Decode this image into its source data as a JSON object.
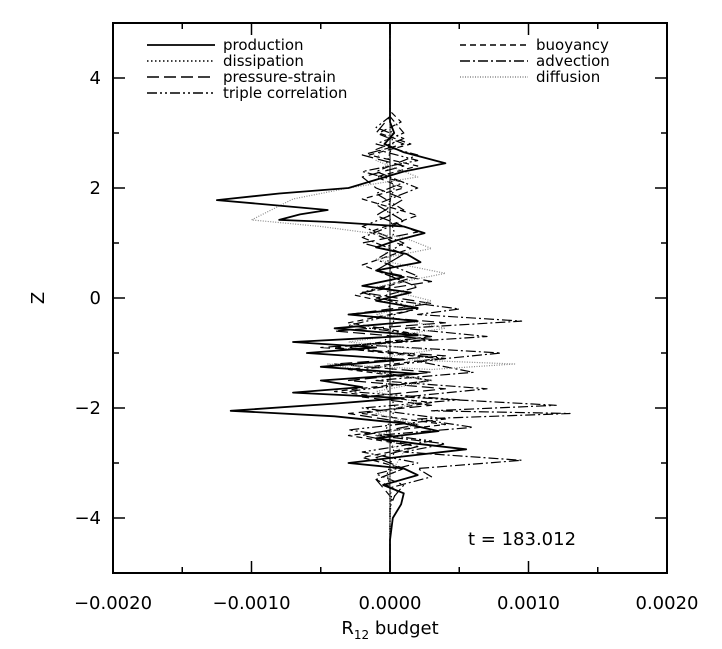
{
  "chart_data": {
    "type": "line",
    "xlabel": "R",
    "xlabel_sub": "12",
    "xlabel_suffix": " budget",
    "ylabel": "Z",
    "xlim": [
      -0.002,
      0.002
    ],
    "ylim": [
      -5,
      5
    ],
    "xticks": [
      -0.002,
      -0.001,
      0.0,
      0.001,
      0.002
    ],
    "xtick_labels": [
      "−0.0020",
      "−0.0010",
      "0.0000",
      "0.0010",
      "0.0020"
    ],
    "yticks": [
      -4,
      -2,
      0,
      2,
      4
    ],
    "ytick_labels": [
      "−4",
      "−2",
      "0",
      "2",
      "4"
    ],
    "grid": false,
    "legend_placement": "top",
    "annotation": "t = 183.012",
    "series": [
      {
        "name": "production",
        "style": "solid",
        "color": "#000000",
        "points": [
          [
            0,
            5
          ],
          [
            0,
            3.2
          ],
          [
            3e-05,
            3.0
          ],
          [
            -4e-05,
            2.8
          ],
          [
            0.0001,
            2.65
          ],
          [
            0.00025,
            2.55
          ],
          [
            0.0004,
            2.45
          ],
          [
            0.0001,
            2.3
          ],
          [
            -0.0001,
            2.15
          ],
          [
            -0.0003,
            2.0
          ],
          [
            -0.0008,
            1.9
          ],
          [
            -0.00125,
            1.78
          ],
          [
            -0.0008,
            1.68
          ],
          [
            -0.00045,
            1.6
          ],
          [
            -0.00065,
            1.52
          ],
          [
            -0.0008,
            1.42
          ],
          [
            -0.0004,
            1.38
          ],
          [
            0.0001,
            1.3
          ],
          [
            0.00025,
            1.18
          ],
          [
            5e-05,
            1.05
          ],
          [
            -0.0001,
            0.92
          ],
          [
            0.00012,
            0.8
          ],
          [
            0.00022,
            0.65
          ],
          [
            -0.0001,
            0.5
          ],
          [
            0.0001,
            0.38
          ],
          [
            -0.0002,
            0.22
          ],
          [
            0.00015,
            0.1
          ],
          [
            -0.0001,
            -0.05
          ],
          [
            0.0002,
            -0.18
          ],
          [
            -0.0003,
            -0.3
          ],
          [
            0.0002,
            -0.42
          ],
          [
            -0.0004,
            -0.55
          ],
          [
            0.0002,
            -0.68
          ],
          [
            -0.0007,
            -0.8
          ],
          [
            -0.0001,
            -0.9
          ],
          [
            -0.0006,
            -1.0
          ],
          [
            0.0001,
            -1.12
          ],
          [
            -0.0005,
            -1.25
          ],
          [
            0.0002,
            -1.38
          ],
          [
            -0.0005,
            -1.5
          ],
          [
            -0.0002,
            -1.62
          ],
          [
            -0.0007,
            -1.72
          ],
          [
            0.0001,
            -1.82
          ],
          [
            -0.0004,
            -1.92
          ],
          [
            -0.00115,
            -2.05
          ],
          [
            -0.0004,
            -2.15
          ],
          [
            0.0001,
            -2.28
          ],
          [
            0.00035,
            -2.42
          ],
          [
            -0.0001,
            -2.55
          ],
          [
            0.0002,
            -2.65
          ],
          [
            0.00055,
            -2.75
          ],
          [
            0.0001,
            -2.88
          ],
          [
            -0.0003,
            -3.0
          ],
          [
            0.0001,
            -3.1
          ],
          [
            0.0002,
            -3.22
          ],
          [
            -5e-05,
            -3.4
          ],
          [
            0.0001,
            -3.55
          ],
          [
            8e-05,
            -3.75
          ],
          [
            2e-05,
            -4.0
          ],
          [
            0,
            -4.4
          ],
          [
            0,
            -5
          ]
        ]
      },
      {
        "name": "dissipation",
        "style": "dotted",
        "color": "#000000",
        "points": [
          [
            0,
            5
          ],
          [
            0,
            3.2
          ],
          [
            2e-05,
            2.8
          ],
          [
            -3e-05,
            2.4
          ],
          [
            3e-05,
            2.0
          ],
          [
            -2e-05,
            1.6
          ],
          [
            3e-05,
            1.2
          ],
          [
            -3e-05,
            0.8
          ],
          [
            2e-05,
            0.4
          ],
          [
            -3e-05,
            0
          ],
          [
            3e-05,
            -0.4
          ],
          [
            -4e-05,
            -0.8
          ],
          [
            3e-05,
            -1.2
          ],
          [
            -3e-05,
            -1.6
          ],
          [
            4e-05,
            -2.0
          ],
          [
            -3e-05,
            -2.4
          ],
          [
            3e-05,
            -2.8
          ],
          [
            -2e-05,
            -3.2
          ],
          [
            1e-05,
            -3.6
          ],
          [
            0,
            -4
          ],
          [
            0,
            -5
          ]
        ]
      },
      {
        "name": "pressure-strain",
        "style": "longdash",
        "color": "#000000",
        "points": [
          [
            0,
            5
          ],
          [
            0,
            3.3
          ],
          [
            -0.0001,
            3.0
          ],
          [
            0.0001,
            2.8
          ],
          [
            -0.0002,
            2.6
          ],
          [
            0.0001,
            2.4
          ],
          [
            -0.0002,
            2.2
          ],
          [
            -0.0001,
            2.0
          ],
          [
            0.0001,
            1.8
          ],
          [
            -0.0001,
            1.5
          ],
          [
            0.0002,
            1.2
          ],
          [
            -0.0002,
            1.0
          ],
          [
            0.0001,
            0.8
          ],
          [
            -0.0001,
            0.5
          ],
          [
            0.0003,
            0.3
          ],
          [
            -0.0002,
            0.1
          ],
          [
            0.0003,
            -0.1
          ],
          [
            -0.0003,
            -0.3
          ],
          [
            0.0004,
            -0.45
          ],
          [
            -0.0004,
            -0.6
          ],
          [
            0.0003,
            -0.75
          ],
          [
            -0.0005,
            -0.9
          ],
          [
            0.0004,
            -1.05
          ],
          [
            -0.0004,
            -1.2
          ],
          [
            0.0003,
            -1.35
          ],
          [
            -0.0003,
            -1.5
          ],
          [
            0.0004,
            -1.65
          ],
          [
            -0.0002,
            -1.8
          ],
          [
            0.0003,
            -1.95
          ],
          [
            -0.0003,
            -2.1
          ],
          [
            0.0002,
            -2.3
          ],
          [
            -0.0002,
            -2.5
          ],
          [
            0.0002,
            -2.7
          ],
          [
            -0.0001,
            -2.9
          ],
          [
            0.0001,
            -3.1
          ],
          [
            -0.0001,
            -3.3
          ],
          [
            0,
            -3.6
          ],
          [
            0,
            -5
          ]
        ]
      },
      {
        "name": "triple correlation",
        "style": "dashdotdot",
        "color": "#000000",
        "points": [
          [
            0,
            5
          ],
          [
            0,
            3.3
          ],
          [
            -0.0001,
            3.1
          ],
          [
            0.0001,
            2.9
          ],
          [
            -0.0001,
            2.7
          ],
          [
            0.0002,
            2.5
          ],
          [
            -0.0002,
            2.3
          ],
          [
            0.0001,
            2.1
          ],
          [
            -0.0001,
            1.9
          ],
          [
            0.0001,
            1.6
          ],
          [
            -0.0002,
            1.3
          ],
          [
            0.0001,
            1.0
          ],
          [
            -0.0001,
            0.7
          ],
          [
            0.0002,
            0.4
          ],
          [
            -0.0002,
            0.1
          ],
          [
            0.0002,
            -0.2
          ],
          [
            -0.0003,
            -0.5
          ],
          [
            0.0003,
            -0.7
          ],
          [
            -0.0003,
            -0.9
          ],
          [
            0.0004,
            -1.1
          ],
          [
            -0.0002,
            -1.3
          ],
          [
            0.0003,
            -1.5
          ],
          [
            -0.0003,
            -1.7
          ],
          [
            0.0005,
            -1.85
          ],
          [
            -0.0002,
            -2.0
          ],
          [
            0.0004,
            -2.2
          ],
          [
            -0.0003,
            -2.4
          ],
          [
            0.0003,
            -2.6
          ],
          [
            -0.0002,
            -2.8
          ],
          [
            0.0002,
            -3.0
          ],
          [
            -0.0001,
            -3.2
          ],
          [
            0.0001,
            -3.4
          ],
          [
            0,
            -3.7
          ],
          [
            0,
            -5
          ]
        ]
      },
      {
        "name": "buoyancy",
        "style": "dashed",
        "color": "#000000",
        "points": [
          [
            0,
            5
          ],
          [
            0,
            3.4
          ],
          [
            8e-05,
            3.2
          ],
          [
            -8e-05,
            3.0
          ],
          [
            0.00015,
            2.8
          ],
          [
            -0.00015,
            2.6
          ],
          [
            0.0002,
            2.4
          ],
          [
            -0.0001,
            2.2
          ],
          [
            0.0001,
            2.0
          ],
          [
            -0.0002,
            1.8
          ],
          [
            0.0002,
            1.5
          ],
          [
            -0.00015,
            1.2
          ],
          [
            0.00015,
            0.9
          ],
          [
            -0.0002,
            0.6
          ],
          [
            0.0001,
            0.3
          ],
          [
            -0.00025,
            0.05
          ],
          [
            0.0002,
            -0.2
          ],
          [
            -0.0003,
            -0.45
          ],
          [
            0.0003,
            -0.7
          ],
          [
            -0.0004,
            -0.9
          ],
          [
            0.00035,
            -1.1
          ],
          [
            -0.0003,
            -1.3
          ],
          [
            0.0003,
            -1.5
          ],
          [
            -0.0004,
            -1.7
          ],
          [
            0.0003,
            -1.9
          ],
          [
            -0.0002,
            -2.1
          ],
          [
            0.0004,
            -2.3
          ],
          [
            -0.0003,
            -2.5
          ],
          [
            0.0002,
            -2.7
          ],
          [
            -0.0002,
            -2.9
          ],
          [
            0.0001,
            -3.1
          ],
          [
            -0.0001,
            -3.3
          ],
          [
            5e-05,
            -3.5
          ],
          [
            0,
            -3.8
          ],
          [
            0,
            -5
          ]
        ]
      },
      {
        "name": "advection",
        "style": "dashdot",
        "color": "#000000",
        "points": [
          [
            0,
            5
          ],
          [
            0,
            3.3
          ],
          [
            0.0001,
            3.0
          ],
          [
            -0.0001,
            2.8
          ],
          [
            0.0002,
            2.6
          ],
          [
            -0.0001,
            2.3
          ],
          [
            0.0002,
            2.0
          ],
          [
            -0.0001,
            1.7
          ],
          [
            0.0001,
            1.4
          ],
          [
            -0.0002,
            1.1
          ],
          [
            0.0001,
            0.8
          ],
          [
            -0.0001,
            0.5
          ],
          [
            0.0002,
            0.2
          ],
          [
            -0.0001,
            0
          ],
          [
            0.0005,
            -0.2
          ],
          [
            0.0002,
            -0.3
          ],
          [
            0.00095,
            -0.42
          ],
          [
            0.0001,
            -0.55
          ],
          [
            0.0007,
            -0.7
          ],
          [
            -0.0002,
            -0.85
          ],
          [
            0.0008,
            -1.0
          ],
          [
            0.0002,
            -1.15
          ],
          [
            0.0006,
            -1.35
          ],
          [
            -0.0001,
            -1.5
          ],
          [
            0.0007,
            -1.65
          ],
          [
            0.0001,
            -1.8
          ],
          [
            0.0012,
            -1.95
          ],
          [
            0.0003,
            -2.05
          ],
          [
            0.0013,
            -2.1
          ],
          [
            0.0002,
            -2.2
          ],
          [
            0.0006,
            -2.35
          ],
          [
            -0.0001,
            -2.5
          ],
          [
            0.0004,
            -2.65
          ],
          [
            0.0001,
            -2.8
          ],
          [
            0.00095,
            -2.95
          ],
          [
            0.0002,
            -3.1
          ],
          [
            0.0003,
            -3.25
          ],
          [
            0,
            -3.45
          ],
          [
            0,
            -5
          ]
        ]
      },
      {
        "name": "diffusion",
        "style": "fine-dotted",
        "color": "#888888",
        "points": [
          [
            0,
            5
          ],
          [
            0,
            3.0
          ],
          [
            -0.0001,
            2.5
          ],
          [
            0.0002,
            2.2
          ],
          [
            -0.0003,
            2.0
          ],
          [
            -0.0007,
            1.8
          ],
          [
            -0.001,
            1.42
          ],
          [
            -0.0005,
            1.3
          ],
          [
            0.0001,
            1.1
          ],
          [
            0.0003,
            0.9
          ],
          [
            -0.0001,
            0.7
          ],
          [
            0.0004,
            0.45
          ],
          [
            -0.0001,
            0.2
          ],
          [
            0.0003,
            -0.05
          ],
          [
            -0.0001,
            -0.3
          ],
          [
            0.0004,
            -0.55
          ],
          [
            -0.0003,
            -0.8
          ],
          [
            0.0003,
            -0.95
          ],
          [
            -0.0001,
            -1.1
          ],
          [
            0.0009,
            -1.2
          ],
          [
            0.0003,
            -1.3
          ],
          [
            -0.00045,
            -1.2
          ],
          [
            -0.0001,
            -1.35
          ],
          [
            0.0003,
            -1.5
          ],
          [
            -0.0001,
            -1.7
          ],
          [
            0.0002,
            -1.9
          ],
          [
            -0.0001,
            -2.1
          ],
          [
            0.0002,
            -2.3
          ],
          [
            -0.0001,
            -2.5
          ],
          [
            0.0001,
            -2.8
          ],
          [
            0,
            -3.2
          ],
          [
            0,
            -5
          ]
        ]
      }
    ]
  }
}
